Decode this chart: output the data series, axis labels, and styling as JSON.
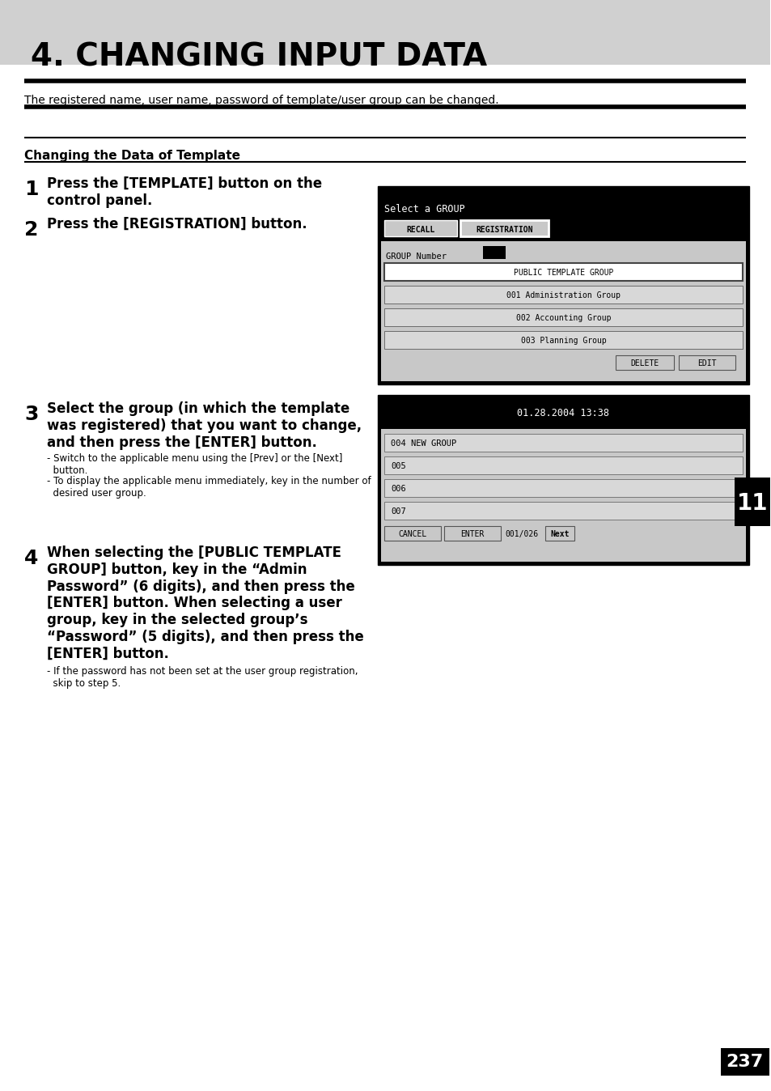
{
  "page_bg": "#ffffff",
  "header_bg": "#d0d0d0",
  "header_title": "4. CHANGING INPUT DATA",
  "header_title_color": "#000000",
  "intro_text": "The registered name, user name, password of template/user group can be changed.",
  "section_title": "Changing the Data of Template",
  "steps": [
    {
      "num": "1",
      "text": "Press the [TEMPLATE] button on the\ncontrol panel."
    },
    {
      "num": "2",
      "text": "Press the [REGISTRATION] button."
    },
    {
      "num": "3",
      "text": "Select the group (in which the template\nwas registered) that you want to change,\nand then press the [ENTER] button."
    },
    {
      "num": "4",
      "text": "When selecting the [PUBLIC TEMPLATE\nGROUP] button, key in the “Admin\nPassword” (6 digits), and then press the\n[ENTER] button. When selecting a user\ngroup, key in the selected group’s\n“Password” (5 digits), and then press the\n[ENTER] button."
    }
  ],
  "step2_subnotes": [],
  "step3_subnotes": [
    "- Switch to the applicable menu using the [Prev] or the [Next]\n  button.",
    "- To display the applicable menu immediately, key in the number of\n  desired user group."
  ],
  "step4_subnotes": [
    "- If the password has not been set at the user group registration,\n  skip to step 5."
  ],
  "screen1": {
    "title": "Select a GROUP",
    "tabs": [
      "RECALL",
      "REGISTRATION"
    ],
    "active_tab": 1,
    "field_label": "GROUP Number",
    "items": [
      "PUBLIC TEMPLATE GROUP",
      "001 Administration Group",
      "002 Accounting Group",
      "003 Planning Group"
    ],
    "highlighted_item": 0,
    "buttons": [
      "DELETE",
      "EDIT"
    ]
  },
  "screen2": {
    "title": "01.28.2004 13:38",
    "items": [
      "004 NEW GROUP",
      "005",
      "006",
      "007"
    ],
    "buttons": [
      "CANCEL",
      "ENTER"
    ],
    "page_info": "001/026",
    "next_btn": "Next"
  },
  "page_number": "237",
  "chapter_num": "11",
  "thick_line_color": "#000000",
  "thin_line_color": "#000000"
}
